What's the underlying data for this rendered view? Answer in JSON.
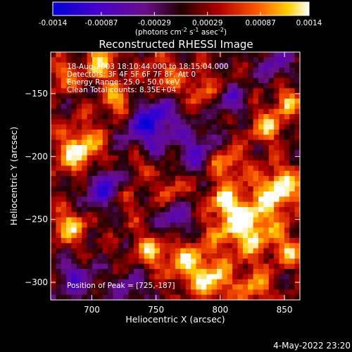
{
  "chart_data": {
    "type": "heatmap",
    "title": "Reconstructed RHESSI Image",
    "xlabel": "Heliocentric X (arcsec)",
    "ylabel": "Heliocentric Y (arcsec)",
    "xlim": [
      668,
      862
    ],
    "ylim": [
      -314,
      -117
    ],
    "xticks": [
      700,
      750,
      800,
      850
    ],
    "yticks": [
      -150,
      -200,
      -250,
      -300
    ],
    "colorbar": {
      "ticks": [
        -0.0014,
        -0.00087,
        -0.00029,
        0.00029,
        0.00087,
        0.0014
      ],
      "tick_labels": [
        "-0.0014",
        "-0.00087",
        "-0.00029",
        "0.00029",
        "0.00087",
        "0.0014"
      ],
      "range": [
        -0.0014,
        0.0014
      ],
      "label_main": "(photons cm",
      "label_exp1": "-2",
      "label_mid": " s",
      "label_exp2": "-1",
      "label_mid2": " asec",
      "label_exp3": "-2",
      "label_end": ")"
    },
    "annotations": [
      "18-Aug-2003 18:10:44.000 to 18:15:04.000",
      "Detectors: 3F 4F 5F 6F 7F 8F, Att 0",
      "Energy Range: 25.0 - 50.0 keV",
      "Clean      Total counts: 8.35E+04"
    ],
    "peak_label": "Position of Peak = [725,-187]",
    "peak_position": [
      725,
      -187
    ],
    "grid": false,
    "colors": {
      "background": "#000000",
      "axes": "#ffffff"
    }
  },
  "footer": {
    "timestamp": "4-May-2022 23:20"
  }
}
